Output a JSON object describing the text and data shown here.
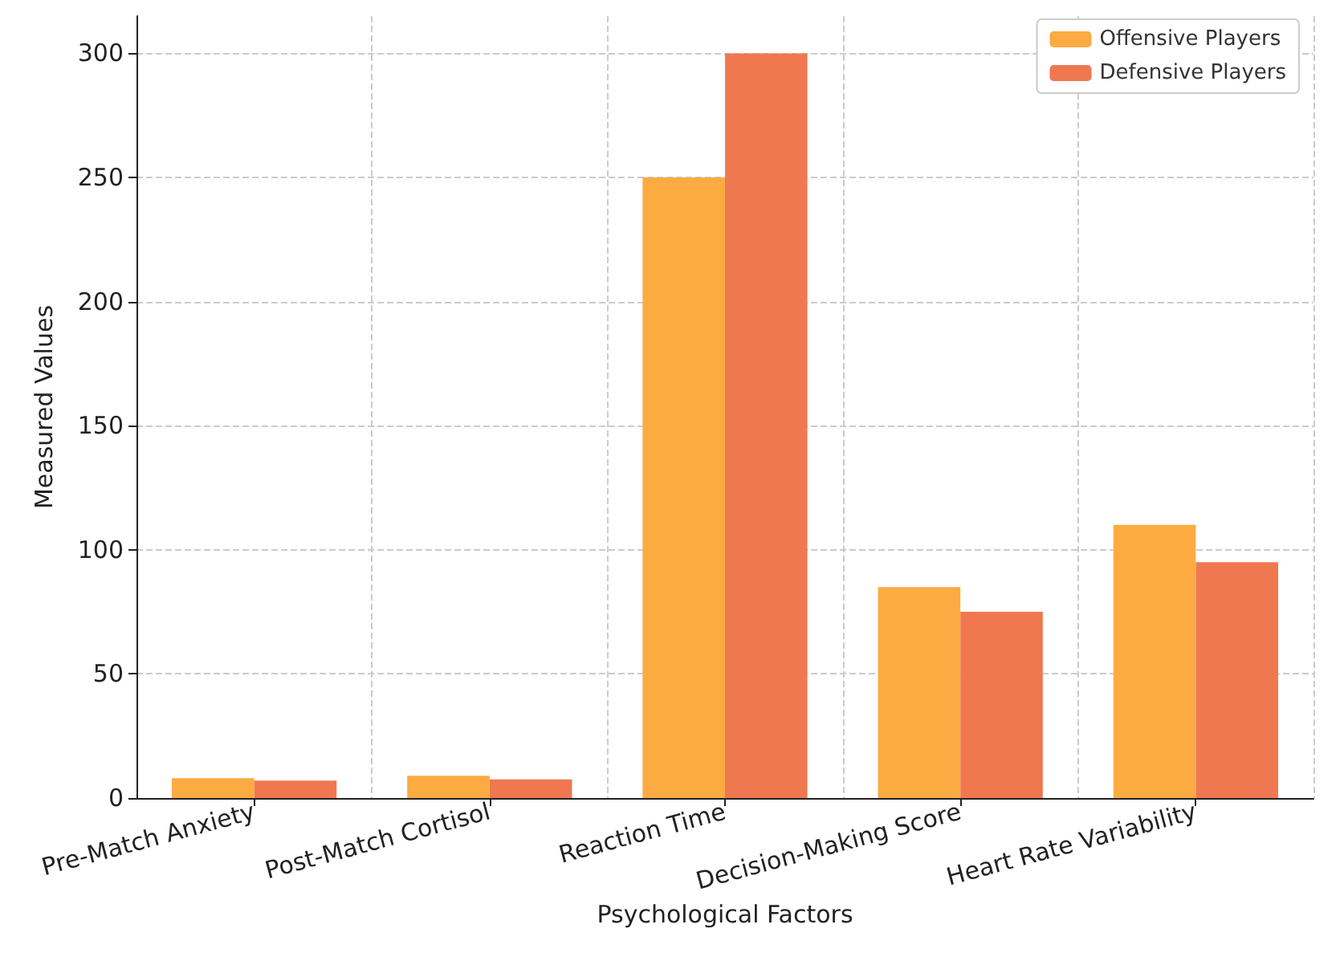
{
  "chart_data": {
    "type": "bar",
    "xlabel": "Psychological Factors",
    "ylabel": "Measured Values",
    "categories": [
      "Pre-Match Anxiety",
      "Post-Match Cortisol",
      "Reaction Time",
      "Decision-Making Score",
      "Heart Rate Variability"
    ],
    "series": [
      {
        "name": "Offensive Players",
        "color": "#fbab41",
        "values": [
          8,
          9,
          250,
          85,
          110
        ]
      },
      {
        "name": "Defensive Players",
        "color": "#f07850",
        "values": [
          7,
          7.5,
          300,
          75,
          95
        ]
      }
    ],
    "ylim": [
      0,
      315
    ],
    "yticks": [
      0,
      50,
      100,
      150,
      200,
      250,
      300
    ],
    "grid": true,
    "legend": "top right"
  }
}
